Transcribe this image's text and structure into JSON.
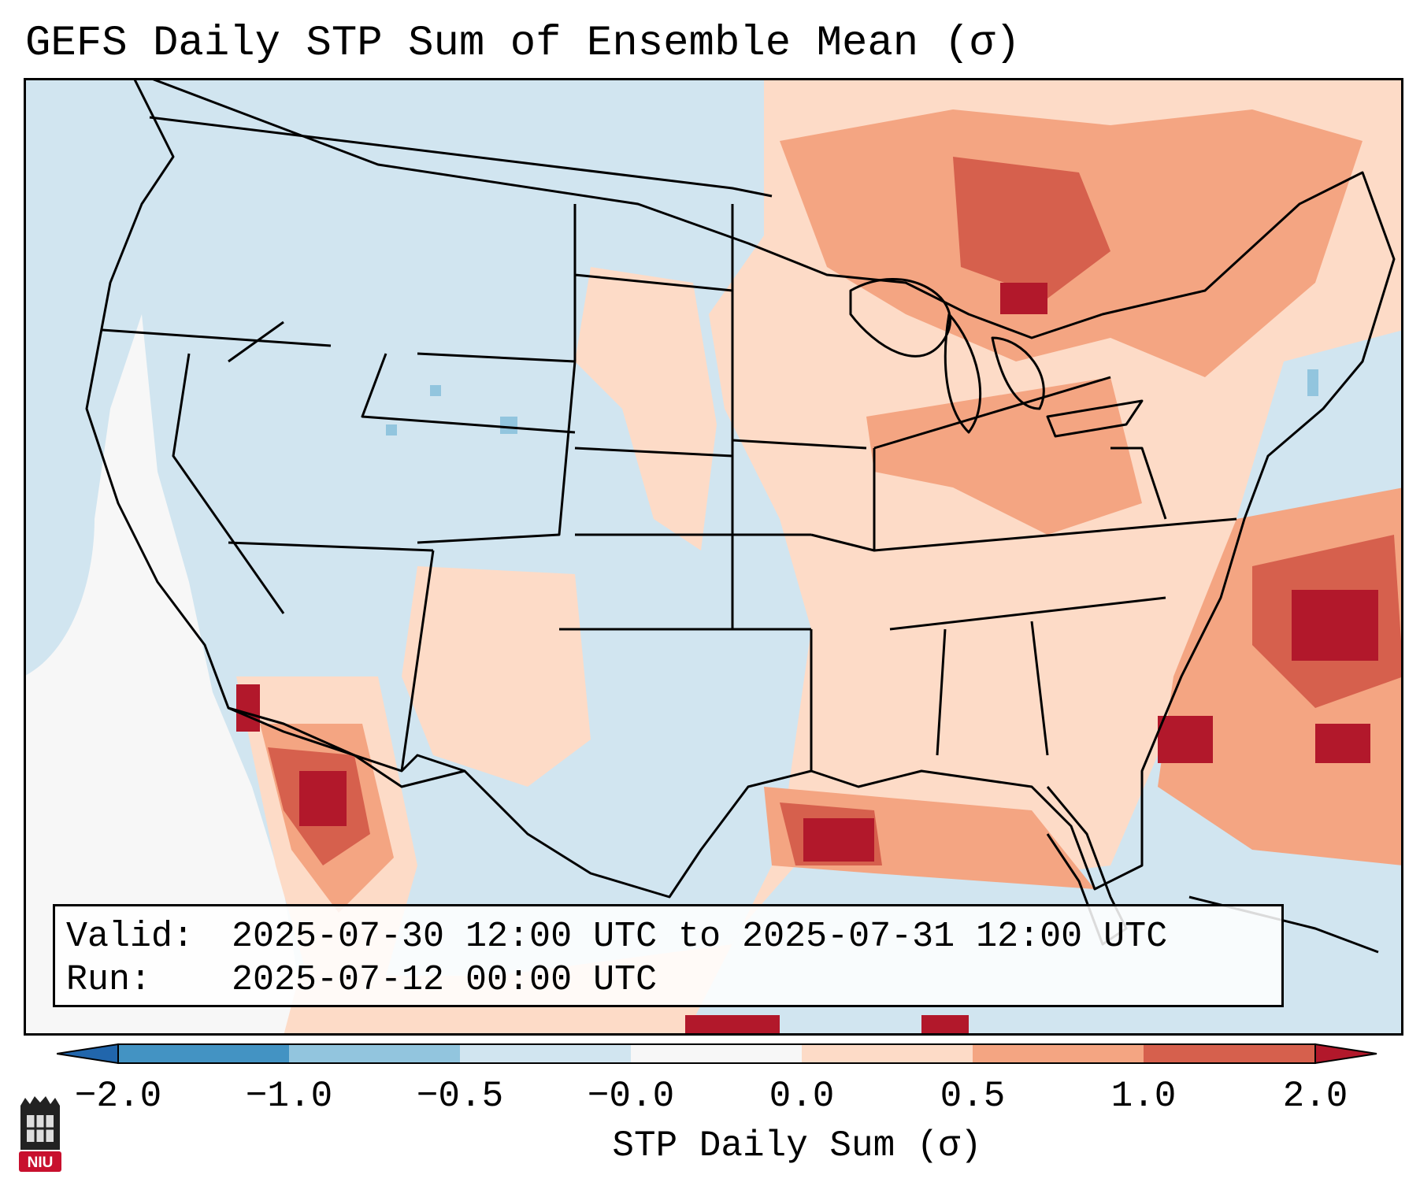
{
  "title": "GEFS Daily STP Sum of Ensemble Mean (σ)",
  "map": {
    "region": "Continental United States",
    "background_color": "#d1e5f0",
    "border_color": "#000000"
  },
  "valid_box": {
    "valid_label": "Valid:",
    "valid_value": "2025-07-30 12:00 UTC to 2025-07-31 12:00 UTC",
    "run_label": "Run:",
    "run_value": "2025-07-12 00:00 UTC"
  },
  "colorbar": {
    "label": "STP Daily Sum (σ)",
    "ticks": [
      "−2.0",
      "−1.0",
      "−0.5",
      "−0.0",
      "0.0",
      "0.5",
      "1.0",
      "2.0"
    ],
    "colors": {
      "under": "#2166ac",
      "bins": [
        "#4393c3",
        "#92c5de",
        "#d1e5f0",
        "#f7f7f7",
        "#fddbc7",
        "#f4a582",
        "#d6604d"
      ],
      "over": "#b2182b"
    }
  },
  "logo": {
    "text": "NIU",
    "icon": "niu-seal-icon",
    "color": "#c8102e"
  }
}
